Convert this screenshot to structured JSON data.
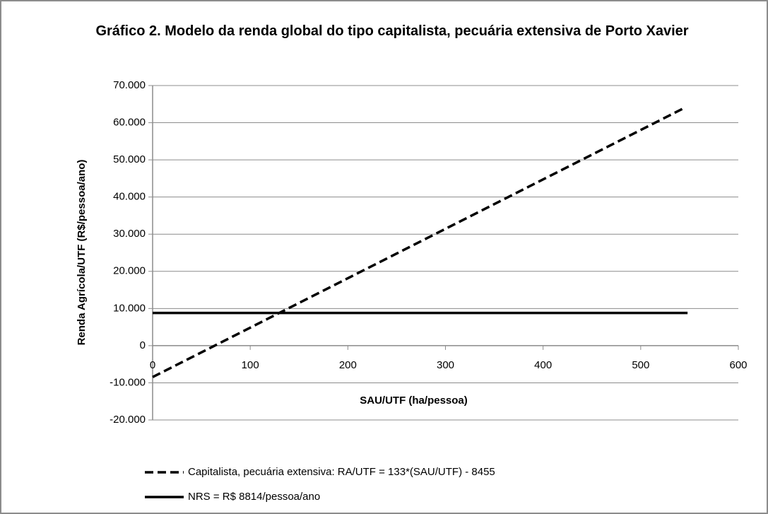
{
  "chart_data": {
    "type": "line",
    "title": "Gráfico 2. Modelo da renda global do tipo capitalista, pecuária extensiva de Porto Xavier",
    "x_label": "SAU/UTF (ha/pessoa)",
    "y_label": "Renda Agrícola/UTF (R$/pessoa/ano)",
    "xlim": [
      0,
      600
    ],
    "xticks": [
      0,
      100,
      200,
      300,
      400,
      500,
      600
    ],
    "ylim": [
      -20000,
      70000
    ],
    "yticks": [
      {
        "value": -20000,
        "label": "-20.000"
      },
      {
        "value": -10000,
        "label": "-10.000"
      },
      0,
      {
        "value": 10000,
        "label": "10.000"
      },
      {
        "value": 20000,
        "label": "20.000"
      },
      {
        "value": 30000,
        "label": "30.000"
      },
      {
        "value": 40000,
        "label": "40.000"
      },
      {
        "value": 50000,
        "label": "50.000"
      },
      {
        "value": 60000,
        "label": "60.000"
      },
      {
        "value": 70000,
        "label": "70.000"
      }
    ],
    "grid": true,
    "legend": "bottom",
    "series": [
      {
        "name": "Capitalista, pecuária extensiva: RA/UTF = 133*(SAU/UTF) - 8455",
        "color": "#000000",
        "line_style": "dashed",
        "x": [
          0,
          545
        ],
        "values": [
          -8455,
          64030
        ]
      },
      {
        "name": "NRS = R$ 8814/pessoa/ano",
        "color": "#000000",
        "line_style": "solid",
        "x": [
          0,
          548
        ],
        "values": [
          8814,
          8814
        ]
      }
    ]
  }
}
